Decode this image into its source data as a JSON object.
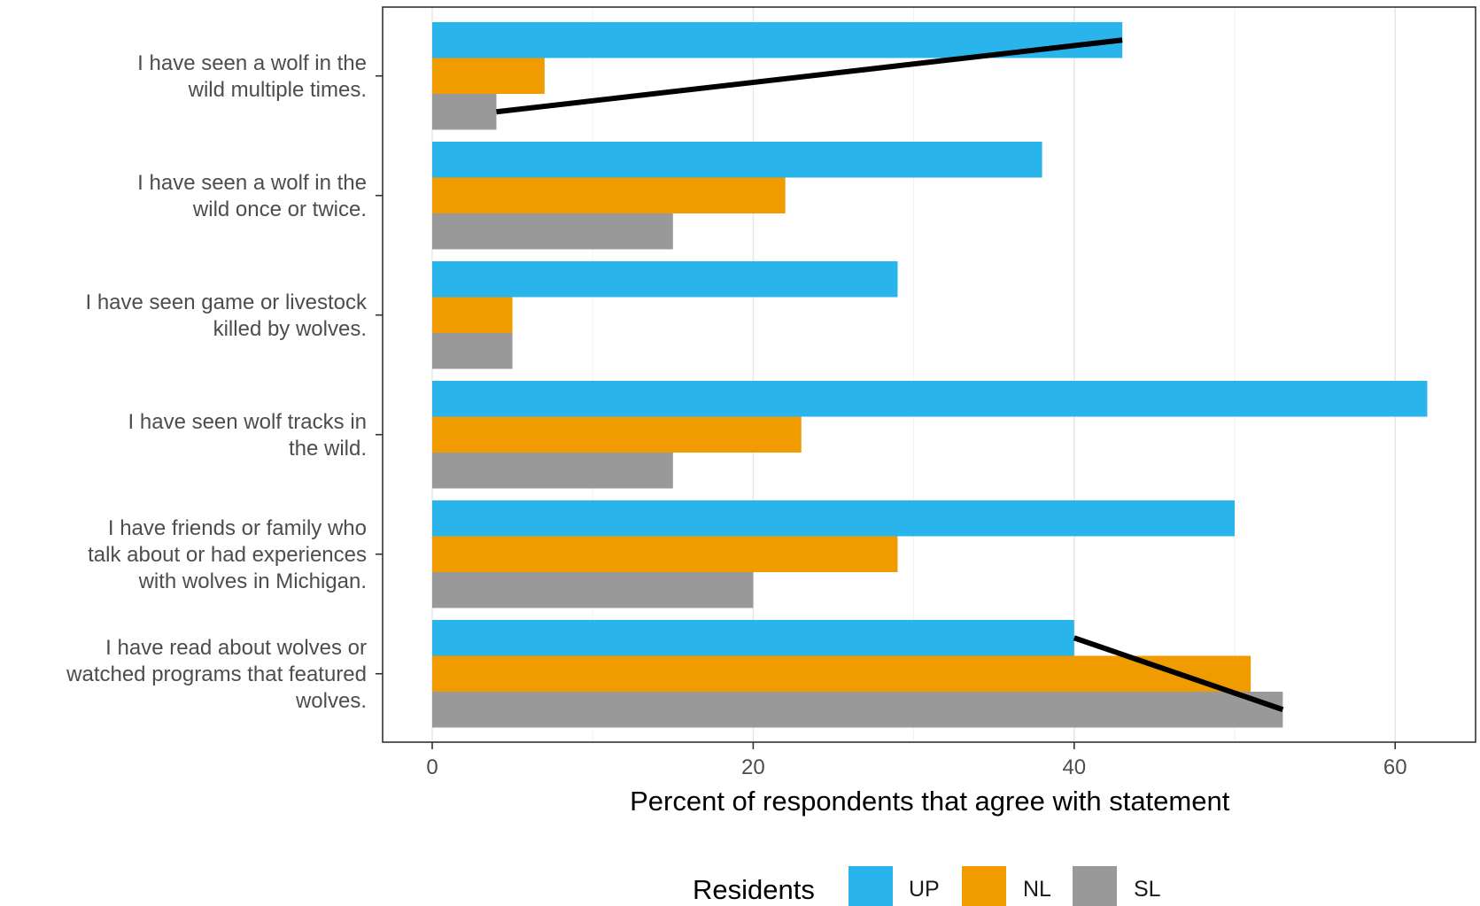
{
  "chart_data": {
    "type": "bar",
    "orientation": "horizontal",
    "categories": [
      "I have seen a wolf in the wild multiple times.",
      "I have seen a wolf in the wild once or twice.",
      "I have seen game or livestock killed by wolves.",
      "I have seen wolf tracks in the wild.",
      "I have friends or family who talk about or had experiences with wolves in Michigan.",
      "I have read about wolves or watched programs that featured wolves."
    ],
    "category_lines": [
      [
        "I have seen a wolf in the",
        "wild multiple times."
      ],
      [
        "I have seen a wolf in the",
        "wild once or twice."
      ],
      [
        "I have seen game or livestock",
        "killed by wolves."
      ],
      [
        "I have seen wolf tracks in",
        "the wild."
      ],
      [
        "I have friends or family who",
        "talk about or had experiences",
        "with wolves in Michigan."
      ],
      [
        "I have read about wolves or",
        "watched programs that featured",
        "wolves."
      ]
    ],
    "series": [
      {
        "name": "UP",
        "color": "#29b5ec",
        "values": [
          43,
          38,
          29,
          62,
          50,
          40
        ]
      },
      {
        "name": "NL",
        "color": "#f09c00",
        "values": [
          7,
          22,
          5,
          23,
          29,
          51
        ]
      },
      {
        "name": "SL",
        "color": "#999999",
        "values": [
          4,
          15,
          5,
          15,
          20,
          53
        ]
      }
    ],
    "xlabel": "Percent of respondents that agree with statement",
    "ylabel": "",
    "xlim": [
      -3,
      65
    ],
    "xticks": [
      0,
      20,
      40,
      60
    ],
    "tick_labels": [
      "0",
      "20",
      "40",
      "60"
    ],
    "grid": true,
    "legend": {
      "title": "Residents",
      "position": "bottom"
    },
    "annotation_lines": [
      {
        "category_index": 0,
        "from": {
          "series": "SL",
          "x": 4
        },
        "to": {
          "series": "UP",
          "x": 43
        }
      },
      {
        "category_index": 5,
        "from": {
          "series": "UP",
          "x": 40
        },
        "to": {
          "series": "SL",
          "x": 53
        }
      }
    ]
  }
}
